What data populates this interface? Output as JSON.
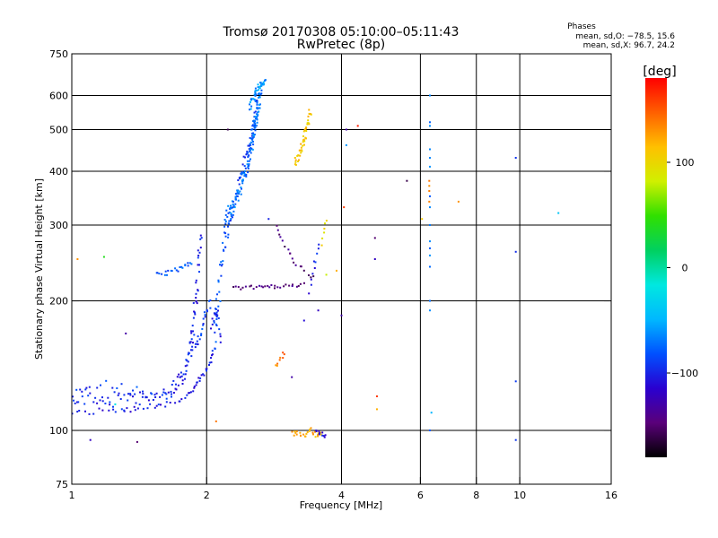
{
  "chart_data": {
    "type": "scatter",
    "title": "Tromsø 20170308 05:10:00–05:11:43",
    "subtitle": "RwPretec (8p)",
    "info": {
      "heading": "Phases",
      "line1": "mean, sd,O: −78.5, 15.6",
      "line2": "mean, sd,X:  96.7, 24.2"
    },
    "xlabel": "Frequency [MHz]",
    "ylabel": "Stationary phase Virtual Height [km]",
    "xscale": "log",
    "yscale": "log",
    "xlim": [
      1,
      16
    ],
    "ylim": [
      75,
      750
    ],
    "xticks": [
      1,
      2,
      4,
      6,
      8,
      10,
      16
    ],
    "xtick_labels": [
      "1",
      "2",
      "4",
      "6",
      "8",
      "10",
      "16"
    ],
    "xgrid": [
      2,
      4,
      6,
      8,
      10
    ],
    "yticks": [
      75,
      100,
      200,
      300,
      400,
      500,
      600,
      750
    ],
    "ytick_labels": [
      "75",
      "100",
      "200",
      "300",
      "400",
      "500",
      "600",
      "750"
    ],
    "ygrid": [
      100,
      200,
      300,
      400,
      500,
      600
    ],
    "grid": true,
    "colorbar": {
      "label": "[deg]",
      "range": [
        -180,
        180
      ],
      "ticks": [
        100,
        0,
        -100
      ],
      "tick_labels": [
        "100",
        "0",
        "−100"
      ],
      "colormap": [
        "#000000",
        "#5a007a",
        "#2a00d0",
        "#0050ff",
        "#00b8ff",
        "#00e8e0",
        "#00d060",
        "#30e000",
        "#d0f000",
        "#ffc000",
        "#ff6000",
        "#ff0000"
      ]
    },
    "traces": [
      {
        "kind": "curve",
        "phase": -105,
        "x": [
          1.0,
          1.1,
          1.3,
          1.5,
          1.7,
          1.8,
          1.85,
          1.9,
          1.95,
          2.0,
          2.05,
          2.08
        ],
        "y": [
          110,
          110,
          111,
          113,
          116,
          120,
          124,
          128,
          133,
          138,
          146,
          155
        ],
        "count": 50,
        "spread": 1.5
      },
      {
        "kind": "curve",
        "phase": -100,
        "x": [
          1.0,
          1.15,
          1.3,
          1.45,
          1.6,
          1.72,
          1.8,
          1.86,
          1.9,
          1.94
        ],
        "y": [
          122,
          118,
          117,
          118,
          120,
          128,
          140,
          165,
          210,
          285
        ],
        "count": 130,
        "spread": 6
      },
      {
        "kind": "curve",
        "phase": -85,
        "x": [
          2.08,
          2.12,
          2.2,
          2.3,
          2.4,
          2.5,
          2.56,
          2.6
        ],
        "y": [
          165,
          200,
          285,
          330,
          400,
          460,
          520,
          600
        ],
        "count": 110,
        "spread": 14
      },
      {
        "kind": "curve",
        "phase": -70,
        "x": [
          2.2,
          2.28,
          2.38,
          2.46,
          2.52,
          2.56,
          2.6,
          2.64
        ],
        "y": [
          305,
          330,
          365,
          405,
          455,
          500,
          550,
          620
        ],
        "count": 120,
        "spread": 14
      },
      {
        "kind": "curve",
        "phase": -60,
        "x": [
          2.5,
          2.54,
          2.58,
          2.62,
          2.66,
          2.72
        ],
        "y": [
          560,
          590,
          615,
          630,
          640,
          645
        ],
        "count": 40,
        "spread": 8
      },
      {
        "kind": "curve",
        "phase": -80,
        "x": [
          1.55,
          1.62,
          1.7,
          1.78,
          1.85
        ],
        "y": [
          230,
          232,
          236,
          240,
          244
        ],
        "count": 22,
        "spread": 3
      },
      {
        "kind": "curve",
        "phase": -145,
        "x": [
          2.3,
          2.45,
          2.6,
          2.75,
          2.9,
          3.1,
          3.3
        ],
        "y": [
          214,
          215,
          215,
          216,
          216,
          217,
          218
        ],
        "count": 30,
        "spread": 2
      },
      {
        "kind": "curve",
        "phase": -145,
        "x": [
          2.85,
          2.95,
          3.05,
          3.15,
          3.3,
          3.45
        ],
        "y": [
          300,
          280,
          260,
          248,
          235,
          225
        ],
        "count": 18,
        "spread": 4
      },
      {
        "kind": "curve",
        "phase": 110,
        "x": [
          3.15,
          3.22,
          3.3,
          3.35,
          3.4
        ],
        "y": [
          420,
          440,
          470,
          510,
          550
        ],
        "count": 45,
        "spread": 10
      },
      {
        "kind": "curve",
        "phase": -90,
        "x": [
          1.85,
          1.9,
          1.95,
          2.0,
          2.04
        ],
        "y": [
          150,
          160,
          175,
          185,
          200
        ],
        "count": 25,
        "spread": 5
      },
      {
        "kind": "curve",
        "phase": -100,
        "x": [
          2.05,
          2.1,
          2.12,
          2.15
        ],
        "y": [
          175,
          190,
          180,
          160
        ],
        "count": 14,
        "spread": 4
      },
      {
        "kind": "curve",
        "phase": 120,
        "x": [
          3.1,
          3.2,
          3.3,
          3.4,
          3.5,
          3.6
        ],
        "y": [
          98,
          99,
          97,
          100,
          98,
          99
        ],
        "count": 26,
        "spread": 1.5
      },
      {
        "kind": "curve",
        "phase": -110,
        "x": [
          3.5,
          3.6,
          3.68
        ],
        "y": [
          100,
          98,
          97
        ],
        "count": 10,
        "spread": 1
      },
      {
        "kind": "curve",
        "phase": 140,
        "x": [
          2.85,
          2.9,
          2.95,
          3.0
        ],
        "y": [
          140,
          143,
          148,
          152
        ],
        "count": 8,
        "spread": 2
      },
      {
        "kind": "curve",
        "phase": -100,
        "x": [
          3.4,
          3.45,
          3.5,
          3.55
        ],
        "y": [
          210,
          230,
          250,
          270
        ],
        "count": 10,
        "spread": 4
      },
      {
        "kind": "curve",
        "phase": 100,
        "x": [
          3.6,
          3.65,
          3.7
        ],
        "y": [
          270,
          290,
          310
        ],
        "count": 6,
        "spread": 3
      },
      {
        "kind": "curve",
        "phase": -90,
        "x": [
          1.02,
          1.1,
          1.2,
          1.3,
          1.4,
          1.5
        ],
        "y": [
          125,
          128,
          130,
          126,
          124,
          122
        ],
        "count": 16,
        "spread": 4
      },
      {
        "kind": "vcol",
        "phase": -70,
        "x": 6.3,
        "y": [
          100,
          190,
          200,
          240,
          255,
          265,
          275,
          300,
          330,
          350,
          410,
          430,
          450,
          510,
          520,
          600
        ],
        "count": 16
      },
      {
        "kind": "vcol",
        "phase": 130,
        "x": 6.28,
        "y": [
          340,
          360,
          370,
          380
        ],
        "count": 4
      },
      {
        "kind": "vcol",
        "phase": -95,
        "x": 9.8,
        "y": [
          95,
          130,
          260,
          430
        ],
        "count": 4
      }
    ],
    "points": [
      {
        "x": 1.03,
        "y": 250,
        "phase": 130
      },
      {
        "x": 1.1,
        "y": 95,
        "phase": -120
      },
      {
        "x": 1.18,
        "y": 253,
        "phase": 40
      },
      {
        "x": 1.25,
        "y": 115,
        "phase": -20
      },
      {
        "x": 1.32,
        "y": 168,
        "phase": -130
      },
      {
        "x": 1.4,
        "y": 94,
        "phase": -150
      },
      {
        "x": 2.1,
        "y": 105,
        "phase": 140
      },
      {
        "x": 2.23,
        "y": 500,
        "phase": -160
      },
      {
        "x": 2.75,
        "y": 310,
        "phase": -100
      },
      {
        "x": 3.1,
        "y": 133,
        "phase": -130
      },
      {
        "x": 3.3,
        "y": 180,
        "phase": -110
      },
      {
        "x": 3.55,
        "y": 190,
        "phase": -120
      },
      {
        "x": 3.7,
        "y": 230,
        "phase": 80
      },
      {
        "x": 3.9,
        "y": 235,
        "phase": 120
      },
      {
        "x": 4.0,
        "y": 185,
        "phase": -130
      },
      {
        "x": 4.05,
        "y": 330,
        "phase": 160
      },
      {
        "x": 4.1,
        "y": 460,
        "phase": -60
      },
      {
        "x": 4.1,
        "y": 500,
        "phase": -130
      },
      {
        "x": 4.35,
        "y": 510,
        "phase": 170
      },
      {
        "x": 4.75,
        "y": 280,
        "phase": -150
      },
      {
        "x": 4.75,
        "y": 250,
        "phase": -120
      },
      {
        "x": 4.8,
        "y": 120,
        "phase": 160
      },
      {
        "x": 4.8,
        "y": 112,
        "phase": 120
      },
      {
        "x": 5.6,
        "y": 380,
        "phase": -160
      },
      {
        "x": 6.05,
        "y": 310,
        "phase": 110
      },
      {
        "x": 6.35,
        "y": 110,
        "phase": -50
      },
      {
        "x": 7.3,
        "y": 340,
        "phase": 130
      },
      {
        "x": 12.2,
        "y": 320,
        "phase": -40
      }
    ]
  }
}
